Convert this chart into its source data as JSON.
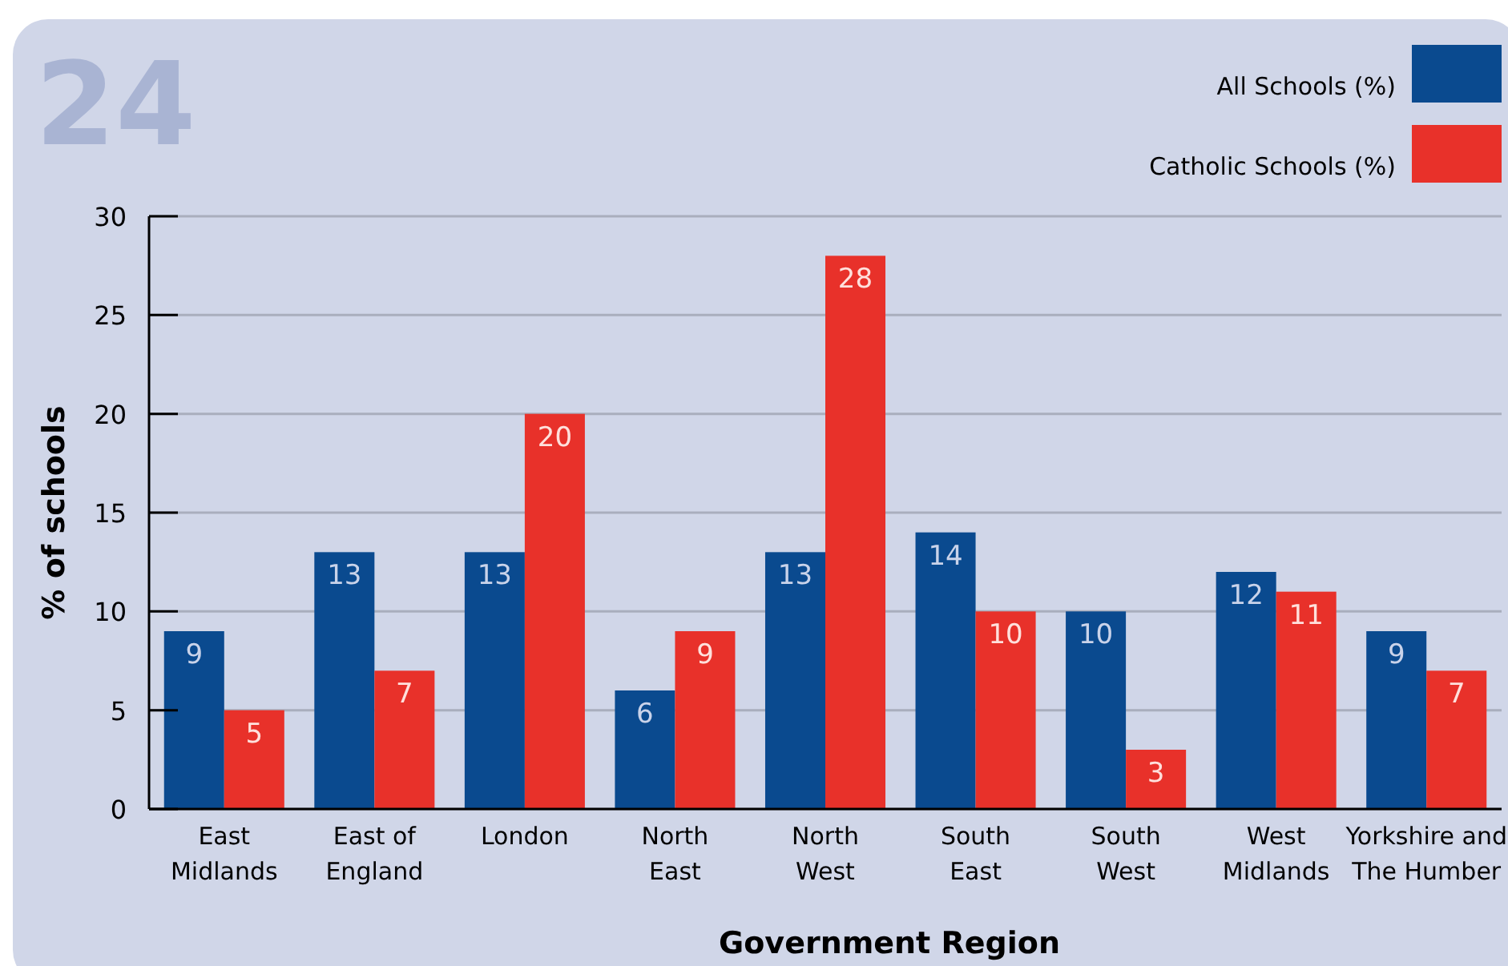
{
  "chart_data": {
    "type": "bar",
    "xlabel": "Government Region",
    "ylabel": "% of schools",
    "categories": [
      "East\nMidlands",
      "East of\nEngland",
      "London",
      "North\nEast",
      "North\nWest",
      "South\nEast",
      "South\nWest",
      "West\nMidlands",
      "Yorkshire and\nThe Humber"
    ],
    "series": [
      {
        "name": "All Schools (%)",
        "color": "#0a4a8f",
        "values": [
          9,
          13,
          13,
          6,
          13,
          14,
          10,
          12,
          9
        ]
      },
      {
        "name": "Catholic Schools (%)",
        "color": "#e8312a",
        "values": [
          5,
          7,
          20,
          9,
          28,
          10,
          3,
          11,
          7
        ]
      }
    ],
    "ylim": [
      0,
      30
    ],
    "yticks": [
      0,
      5,
      10,
      15,
      20,
      25,
      30
    ],
    "grid": "y",
    "legend": "top right",
    "data_labels": true,
    "annotations": [
      "24"
    ]
  }
}
